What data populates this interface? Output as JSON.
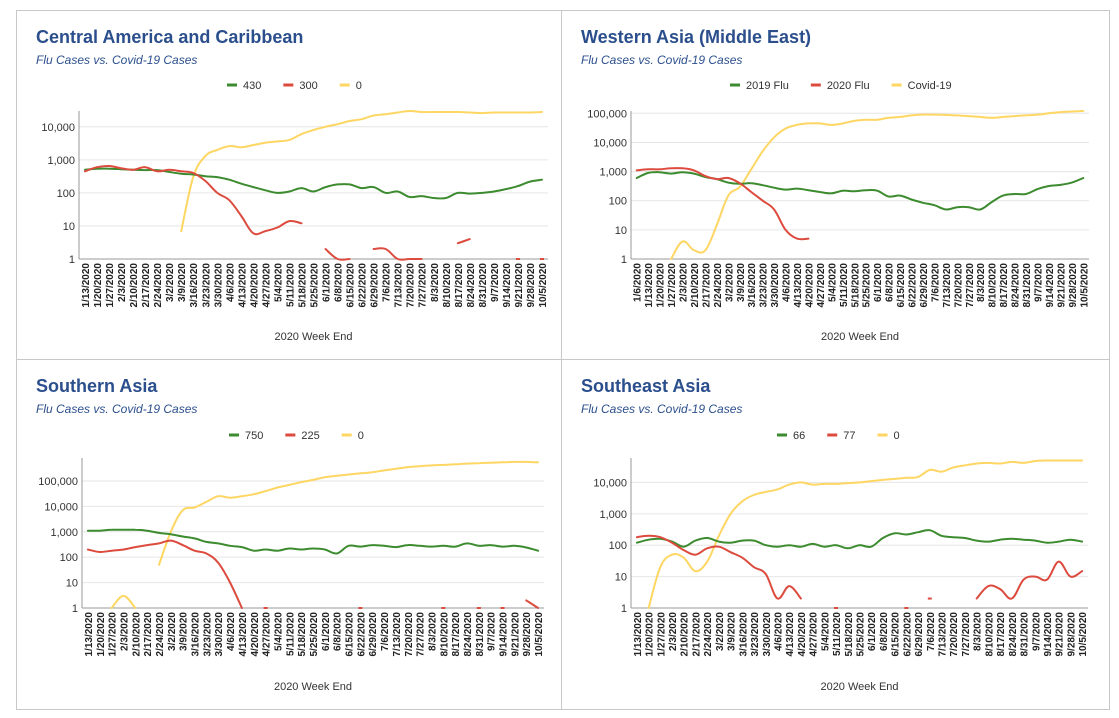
{
  "colors": {
    "flu2019": "#3d8b2f",
    "flu2020": "#dc4b3e",
    "covid": "#fdd663",
    "title": "#2b4f8c",
    "grid": "#e6e6e6",
    "axis": "#333333"
  },
  "chart_data": [
    {
      "type": "line",
      "title": "Central America and Caribbean",
      "subtitle": "Flu Cases vs. Covid-19 Cases",
      "xlabel": "2020 Week End",
      "ylabel": "",
      "scale": "log",
      "ylim": [
        1,
        30000
      ],
      "yticks": [
        1,
        10,
        100,
        1000,
        10000
      ],
      "ytick_labels": [
        "1",
        "10",
        "100",
        "1,000",
        "10,000"
      ],
      "legend_position": "top",
      "categories": [
        "1/13/2020",
        "1/20/2020",
        "1/27/2020",
        "2/3/2020",
        "2/10/2020",
        "2/17/2020",
        "2/24/2020",
        "3/2/2020",
        "3/9/2020",
        "3/16/2020",
        "3/23/2020",
        "3/30/2020",
        "4/6/2020",
        "4/13/2020",
        "4/20/2020",
        "4/27/2020",
        "5/4/2020",
        "5/11/2020",
        "5/18/2020",
        "5/25/2020",
        "6/1/2020",
        "6/8/2020",
        "6/15/2020",
        "6/22/2020",
        "6/29/2020",
        "7/6/2020",
        "7/13/2020",
        "7/20/2020",
        "7/27/2020",
        "8/3/2020",
        "8/10/2020",
        "8/17/2020",
        "8/24/2020",
        "8/31/2020",
        "9/7/2020",
        "9/14/2020",
        "9/21/2020",
        "9/28/2020",
        "10/5/2020"
      ],
      "series": [
        {
          "name": "430",
          "color": "#3d8b2f",
          "values": [
            500,
            540,
            540,
            520,
            500,
            490,
            490,
            430,
            380,
            360,
            320,
            300,
            250,
            190,
            150,
            120,
            100,
            110,
            140,
            110,
            150,
            180,
            180,
            140,
            150,
            100,
            110,
            75,
            80,
            70,
            70,
            100,
            95,
            100,
            110,
            130,
            160,
            220,
            250
          ]
        },
        {
          "name": "300",
          "color": "#dc4b3e",
          "values": [
            450,
            600,
            650,
            560,
            500,
            600,
            450,
            500,
            450,
            400,
            230,
            100,
            60,
            20,
            6,
            7,
            9,
            14,
            12,
            null,
            2,
            1,
            1,
            null,
            2,
            2,
            1,
            1,
            1,
            null,
            null,
            3,
            4,
            null,
            null,
            null,
            1,
            null,
            1
          ]
        },
        {
          "name": "0",
          "color": "#fdd663",
          "values": [
            null,
            null,
            null,
            null,
            null,
            null,
            null,
            null,
            7,
            300,
            1300,
            2000,
            2600,
            2400,
            2800,
            3300,
            3600,
            4000,
            6000,
            8000,
            10000,
            12000,
            15000,
            17000,
            22000,
            24000,
            27000,
            30000,
            28000,
            28000,
            28000,
            28000,
            27000,
            26000,
            27000,
            27000,
            27000,
            27000,
            28000
          ]
        }
      ]
    },
    {
      "type": "line",
      "title": "Western Asia (Middle East)",
      "subtitle": "Flu Cases vs. Covid-19 Cases",
      "xlabel": "2020 Week End",
      "ylabel": "",
      "scale": "log",
      "ylim": [
        1,
        120000
      ],
      "yticks": [
        1,
        10,
        100,
        1000,
        10000,
        100000
      ],
      "ytick_labels": [
        "1",
        "10",
        "100",
        "1,000",
        "10,000",
        "100,000"
      ],
      "legend_position": "top",
      "categories": [
        "1/6/2020",
        "1/13/2020",
        "1/20/2020",
        "1/27/2020",
        "2/3/2020",
        "2/10/2020",
        "2/17/2020",
        "2/24/2020",
        "3/2/2020",
        "3/9/2020",
        "3/16/2020",
        "3/23/2020",
        "3/30/2020",
        "4/6/2020",
        "4/13/2020",
        "4/20/2020",
        "4/27/2020",
        "5/4/2020",
        "5/11/2020",
        "5/18/2020",
        "5/25/2020",
        "6/1/2020",
        "6/8/2020",
        "6/15/2020",
        "6/22/2020",
        "6/29/2020",
        "7/6/2020",
        "7/13/2020",
        "7/20/2020",
        "7/27/2020",
        "8/3/2020",
        "8/10/2020",
        "8/17/2020",
        "8/24/2020",
        "8/31/2020",
        "9/7/2020",
        "9/14/2020",
        "9/21/2020",
        "9/28/2020",
        "10/5/2020"
      ],
      "series": [
        {
          "name": "2019 Flu",
          "color": "#3d8b2f",
          "values": [
            600,
            900,
            950,
            850,
            950,
            850,
            650,
            550,
            420,
            380,
            400,
            340,
            280,
            240,
            260,
            230,
            200,
            180,
            220,
            210,
            230,
            220,
            140,
            150,
            110,
            85,
            70,
            50,
            60,
            60,
            50,
            90,
            150,
            170,
            170,
            250,
            320,
            350,
            420,
            600
          ]
        },
        {
          "name": "2020 Flu",
          "color": "#dc4b3e",
          "values": [
            1100,
            1200,
            1200,
            1300,
            1300,
            1100,
            700,
            550,
            600,
            400,
            200,
            100,
            50,
            10,
            5,
            5,
            null,
            null,
            null,
            null,
            null,
            null,
            null,
            null,
            null,
            null,
            null,
            null,
            null,
            null,
            null,
            null,
            null,
            null,
            null,
            null,
            null,
            null,
            null,
            null
          ]
        },
        {
          "name": "Covid-19",
          "color": "#fdd663",
          "values": [
            null,
            null,
            null,
            1,
            4,
            2,
            2,
            15,
            150,
            300,
            1200,
            5000,
            15000,
            30000,
            40000,
            45000,
            45000,
            40000,
            45000,
            55000,
            60000,
            60000,
            70000,
            75000,
            85000,
            90000,
            90000,
            88000,
            85000,
            80000,
            75000,
            70000,
            75000,
            80000,
            85000,
            90000,
            100000,
            110000,
            115000,
            120000
          ]
        }
      ]
    },
    {
      "type": "line",
      "title": "Southern Asia",
      "subtitle": "Flu Cases vs. Covid-19 Cases",
      "xlabel": "2020 Week End",
      "ylabel": "",
      "scale": "log",
      "ylim": [
        1,
        800000
      ],
      "yticks": [
        1,
        10,
        100,
        1000,
        10000,
        100000
      ],
      "ytick_labels": [
        "1",
        "10",
        "100",
        "1,000",
        "10,000",
        "100,000"
      ],
      "legend_position": "top",
      "categories": [
        "1/13/2020",
        "1/20/2020",
        "1/27/2020",
        "2/3/2020",
        "2/10/2020",
        "2/17/2020",
        "2/24/2020",
        "3/2/2020",
        "3/9/2020",
        "3/16/2020",
        "3/23/2020",
        "3/30/2020",
        "4/6/2020",
        "4/13/2020",
        "4/20/2020",
        "4/27/2020",
        "5/4/2020",
        "5/11/2020",
        "5/18/2020",
        "5/25/2020",
        "6/1/2020",
        "6/8/2020",
        "6/15/2020",
        "6/22/2020",
        "6/29/2020",
        "7/6/2020",
        "7/13/2020",
        "7/20/2020",
        "7/27/2020",
        "8/3/2020",
        "8/10/2020",
        "8/17/2020",
        "8/24/2020",
        "8/31/2020",
        "9/7/2020",
        "9/14/2020",
        "9/21/2020",
        "9/28/2020",
        "10/5/2020"
      ],
      "series": [
        {
          "name": "750",
          "color": "#3d8b2f",
          "values": [
            1100,
            1100,
            1200,
            1200,
            1200,
            1100,
            900,
            800,
            650,
            550,
            400,
            350,
            280,
            250,
            180,
            200,
            180,
            220,
            200,
            220,
            200,
            140,
            280,
            260,
            300,
            280,
            250,
            300,
            280,
            260,
            280,
            260,
            350,
            280,
            300,
            260,
            280,
            240,
            180
          ]
        },
        {
          "name": "225",
          "color": "#dc4b3e",
          "values": [
            200,
            160,
            180,
            200,
            250,
            300,
            350,
            450,
            300,
            180,
            140,
            60,
            10,
            1,
            null,
            1,
            null,
            null,
            null,
            null,
            null,
            null,
            null,
            1,
            null,
            null,
            null,
            null,
            null,
            null,
            1,
            null,
            null,
            1,
            null,
            1,
            null,
            2,
            1
          ]
        },
        {
          "name": "0",
          "color": "#fdd663",
          "values": [
            null,
            null,
            1,
            3,
            1,
            null,
            50,
            1000,
            7000,
            9000,
            15000,
            25000,
            22000,
            25000,
            30000,
            40000,
            55000,
            70000,
            90000,
            110000,
            140000,
            160000,
            180000,
            200000,
            220000,
            260000,
            300000,
            350000,
            380000,
            410000,
            430000,
            450000,
            480000,
            500000,
            520000,
            540000,
            560000,
            560000,
            540000
          ]
        }
      ]
    },
    {
      "type": "line",
      "title": "Southeast Asia",
      "subtitle": "Flu Cases vs. Covid-19 Cases",
      "xlabel": "2020 Week End",
      "ylabel": "",
      "scale": "log",
      "ylim": [
        1,
        60000
      ],
      "yticks": [
        1,
        10,
        100,
        1000,
        10000
      ],
      "ytick_labels": [
        "1",
        "10",
        "100",
        "1,000",
        "10,000"
      ],
      "legend_position": "top",
      "categories": [
        "1/13/2020",
        "1/20/2020",
        "1/27/2020",
        "2/3/2020",
        "2/10/2020",
        "2/17/2020",
        "2/24/2020",
        "3/2/2020",
        "3/9/2020",
        "3/16/2020",
        "3/23/2020",
        "3/30/2020",
        "4/6/2020",
        "4/13/2020",
        "4/20/2020",
        "4/27/2020",
        "5/4/2020",
        "5/11/2020",
        "5/18/2020",
        "5/25/2020",
        "6/1/2020",
        "6/8/2020",
        "6/15/2020",
        "6/22/2020",
        "6/29/2020",
        "7/6/2020",
        "7/13/2020",
        "7/20/2020",
        "7/27/2020",
        "8/3/2020",
        "8/10/2020",
        "8/17/2020",
        "8/24/2020",
        "8/31/2020",
        "9/7/2020",
        "9/14/2020",
        "9/21/2020",
        "9/28/2020",
        "10/5/2020"
      ],
      "series": [
        {
          "name": "66",
          "color": "#3d8b2f",
          "values": [
            120,
            150,
            160,
            130,
            90,
            140,
            170,
            130,
            120,
            140,
            140,
            100,
            90,
            100,
            90,
            110,
            90,
            100,
            80,
            100,
            90,
            170,
            240,
            220,
            260,
            300,
            200,
            180,
            170,
            140,
            130,
            150,
            160,
            150,
            140,
            120,
            130,
            150,
            130
          ]
        },
        {
          "name": "77",
          "color": "#dc4b3e",
          "values": [
            180,
            200,
            180,
            120,
            70,
            50,
            80,
            90,
            60,
            40,
            20,
            12,
            2,
            5,
            2,
            null,
            null,
            1,
            null,
            null,
            null,
            null,
            null,
            1,
            null,
            2,
            null,
            null,
            null,
            2,
            5,
            4,
            2,
            8,
            10,
            8,
            30,
            10,
            15
          ]
        },
        {
          "name": "0",
          "color": "#fdd663",
          "values": [
            null,
            1,
            20,
            50,
            40,
            15,
            30,
            200,
            1000,
            2500,
            4000,
            5000,
            6000,
            8500,
            10000,
            8500,
            9000,
            9000,
            9500,
            10000,
            11000,
            12000,
            13000,
            14000,
            15000,
            25000,
            22000,
            30000,
            35000,
            40000,
            42000,
            40000,
            45000,
            42000,
            48000,
            50000,
            50000,
            50000,
            50000
          ]
        }
      ]
    }
  ]
}
